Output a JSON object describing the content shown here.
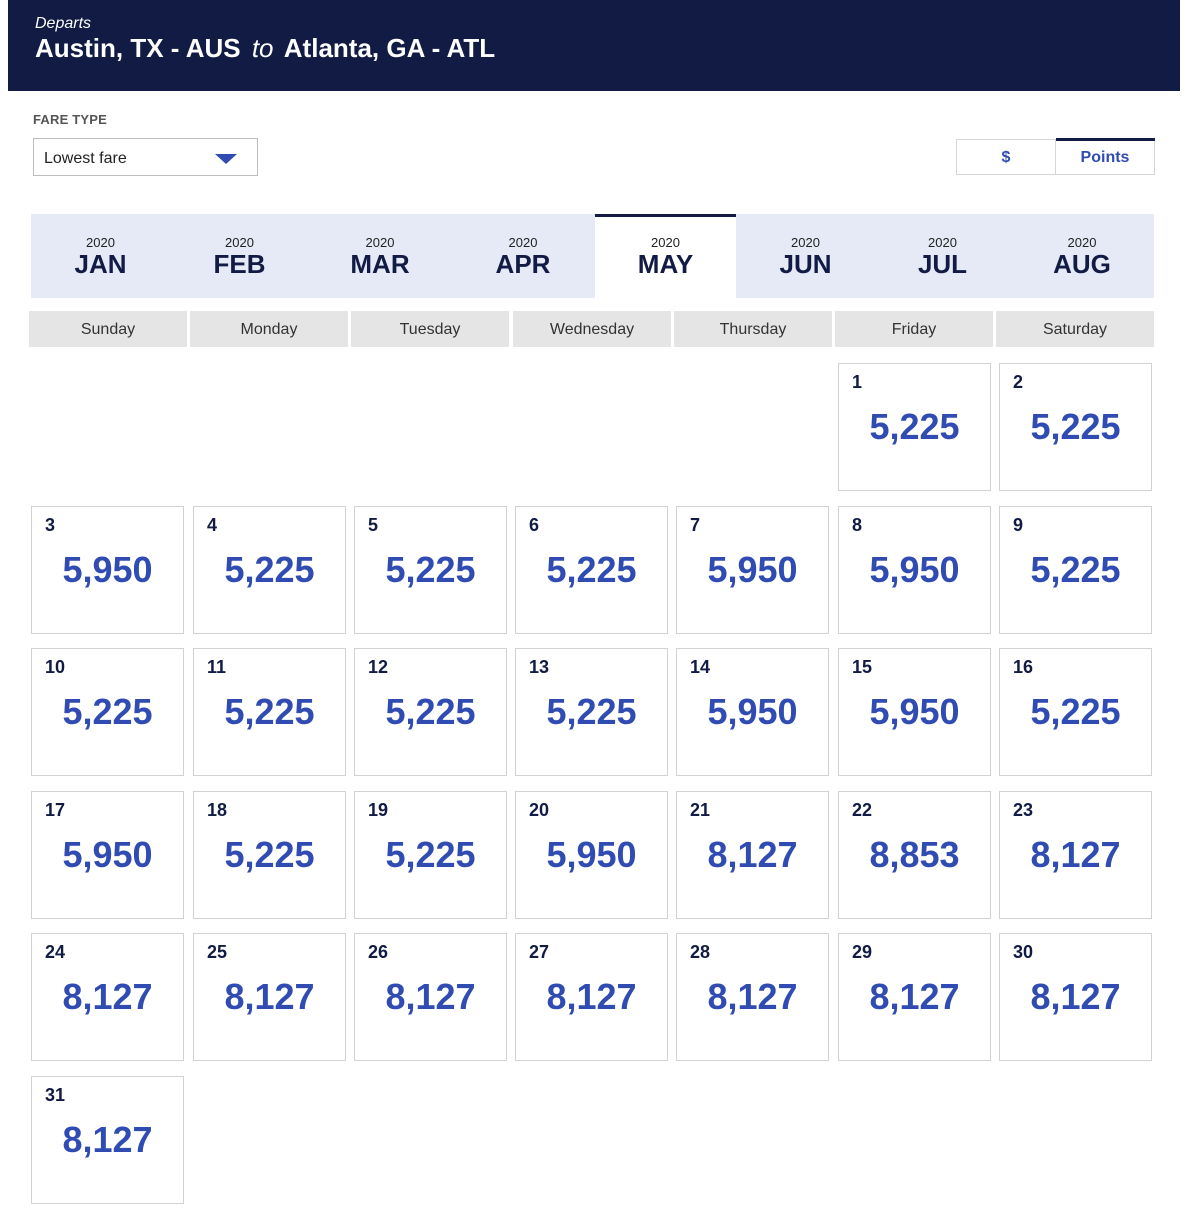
{
  "header": {
    "departs_label": "Departs",
    "origin": "Austin, TX - AUS",
    "to_word": "to",
    "destination": "Atlanta, GA - ATL"
  },
  "fare_type": {
    "label": "FARE TYPE",
    "selected": "Lowest fare"
  },
  "currency_toggle": {
    "dollar_label": "$",
    "points_label": "Points",
    "active": "Points"
  },
  "months": [
    {
      "year": "2020",
      "name": "JAN"
    },
    {
      "year": "2020",
      "name": "FEB"
    },
    {
      "year": "2020",
      "name": "MAR"
    },
    {
      "year": "2020",
      "name": "APR"
    },
    {
      "year": "2020",
      "name": "MAY",
      "active": true
    },
    {
      "year": "2020",
      "name": "JUN"
    },
    {
      "year": "2020",
      "name": "JUL"
    },
    {
      "year": "2020",
      "name": "AUG"
    }
  ],
  "weekdays": [
    "Sunday",
    "Monday",
    "Tuesday",
    "Wednesday",
    "Thursday",
    "Friday",
    "Saturday"
  ],
  "calendar": {
    "days": [
      {
        "day": "1",
        "price": "5,225"
      },
      {
        "day": "2",
        "price": "5,225"
      },
      {
        "day": "3",
        "price": "5,950"
      },
      {
        "day": "4",
        "price": "5,225"
      },
      {
        "day": "5",
        "price": "5,225"
      },
      {
        "day": "6",
        "price": "5,225"
      },
      {
        "day": "7",
        "price": "5,950"
      },
      {
        "day": "8",
        "price": "5,950"
      },
      {
        "day": "9",
        "price": "5,225"
      },
      {
        "day": "10",
        "price": "5,225"
      },
      {
        "day": "11",
        "price": "5,225"
      },
      {
        "day": "12",
        "price": "5,225"
      },
      {
        "day": "13",
        "price": "5,225"
      },
      {
        "day": "14",
        "price": "5,950"
      },
      {
        "day": "15",
        "price": "5,950"
      },
      {
        "day": "16",
        "price": "5,225"
      },
      {
        "day": "17",
        "price": "5,950"
      },
      {
        "day": "18",
        "price": "5,225"
      },
      {
        "day": "19",
        "price": "5,225"
      },
      {
        "day": "20",
        "price": "5,950"
      },
      {
        "day": "21",
        "price": "8,127"
      },
      {
        "day": "22",
        "price": "8,853"
      },
      {
        "day": "23",
        "price": "8,127"
      },
      {
        "day": "24",
        "price": "8,127"
      },
      {
        "day": "25",
        "price": "8,127"
      },
      {
        "day": "26",
        "price": "8,127"
      },
      {
        "day": "27",
        "price": "8,127"
      },
      {
        "day": "28",
        "price": "8,127"
      },
      {
        "day": "29",
        "price": "8,127"
      },
      {
        "day": "30",
        "price": "8,127"
      },
      {
        "day": "31",
        "price": "8,127"
      }
    ]
  }
}
